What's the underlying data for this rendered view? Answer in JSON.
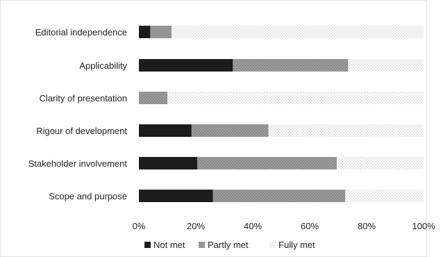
{
  "chart_data": {
    "type": "bar",
    "orientation": "horizontal",
    "stacked": true,
    "categories": [
      "Editorial independence",
      "Applicability",
      "Clarity of presentation",
      "Rigour of development",
      "Stakeholder involvement",
      "Scope and purpose"
    ],
    "series": [
      {
        "name": "Not met",
        "values": [
          4,
          33,
          0,
          18.5,
          20.5,
          26
        ]
      },
      {
        "name": "Partly met",
        "values": [
          7.5,
          40.5,
          10,
          27,
          49,
          46.5
        ]
      },
      {
        "name": "Fully met",
        "values": [
          88.5,
          26.5,
          90,
          54.5,
          30.5,
          27.5
        ]
      }
    ],
    "series_colors": [
      "#1c1c1c",
      "#8f8f8f",
      "#e6e6e6"
    ],
    "x_ticks": [
      "0%",
      "20%",
      "40%",
      "60%",
      "80%",
      "100%"
    ],
    "xlim": [
      0,
      100
    ],
    "grid": false,
    "legend_position": "bottom",
    "title": "",
    "xlabel": "",
    "ylabel": ""
  }
}
